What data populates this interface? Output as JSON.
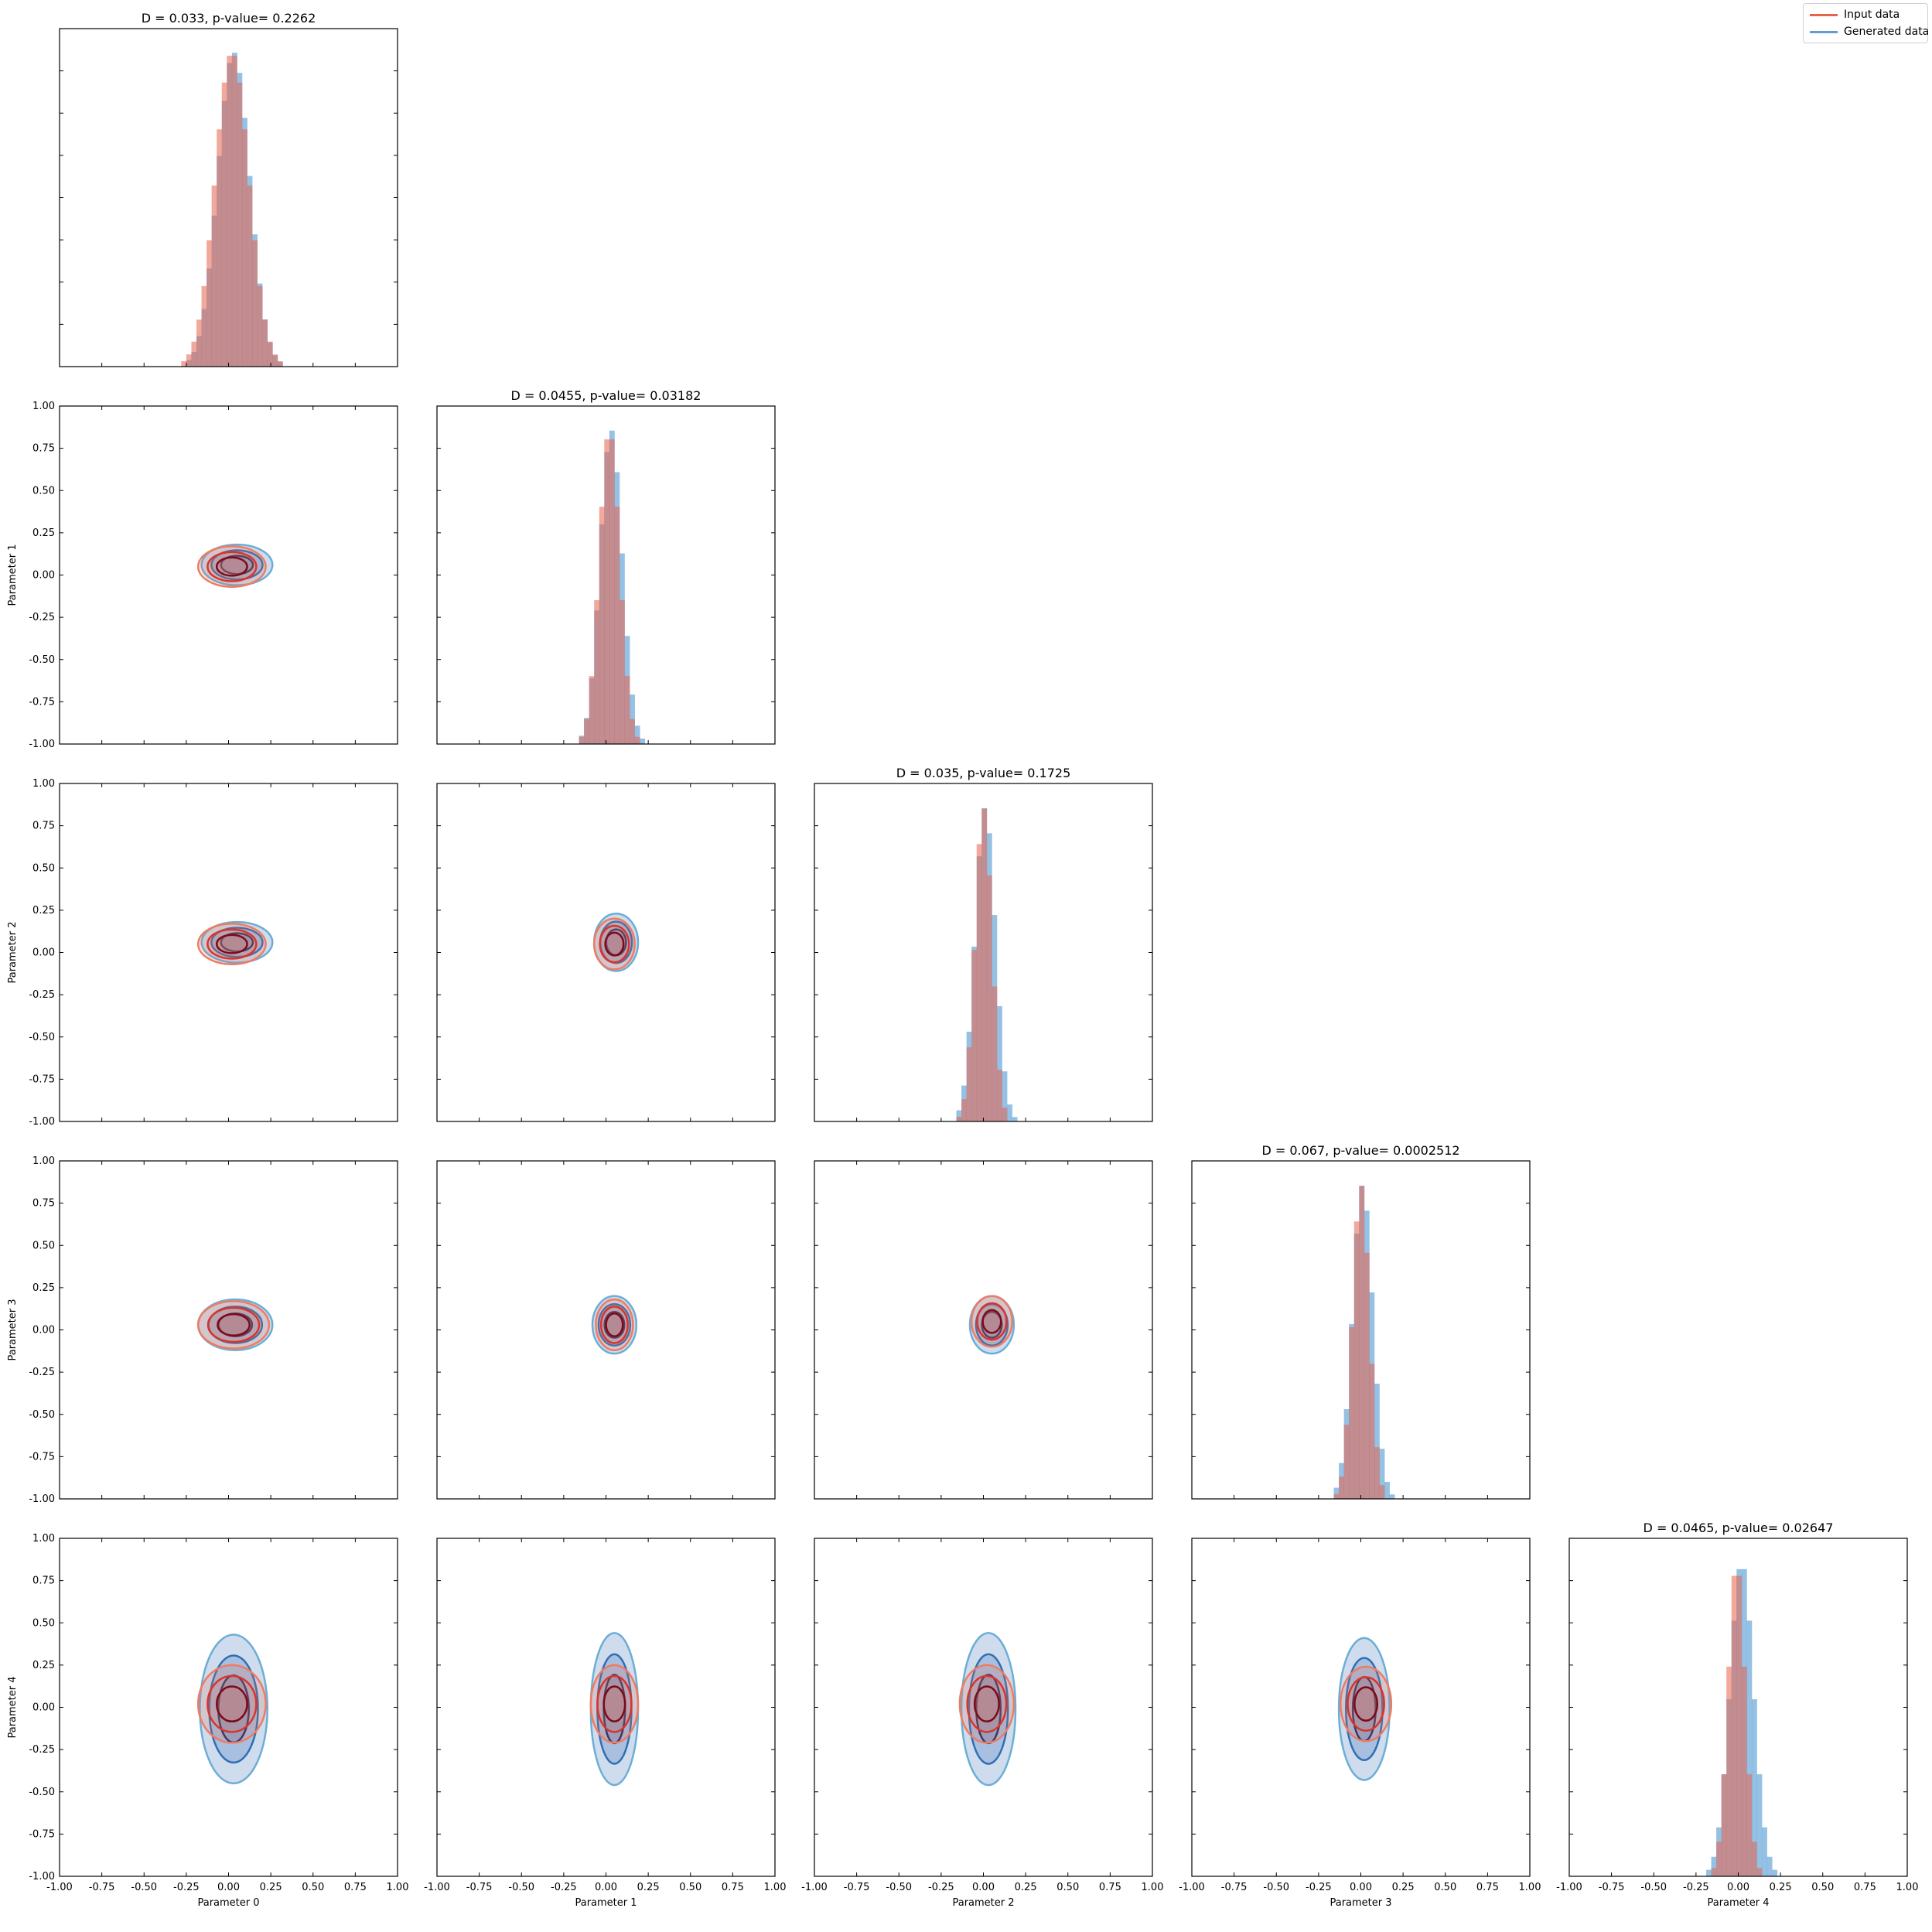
{
  "legend": {
    "placement": "top-right",
    "items": [
      {
        "label": "Input data",
        "color": "#e8634c"
      },
      {
        "label": "Generated data",
        "color": "#5b9fd6"
      }
    ]
  },
  "colors": {
    "input": "#e8634c",
    "generated": "#5b9fd6",
    "overlap": "#7b7aa0"
  },
  "chart_data": {
    "type": "corner-plot",
    "parameters": [
      "Parameter 0",
      "Parameter 1",
      "Parameter 2",
      "Parameter 3",
      "Parameter 4"
    ],
    "xlim": [
      -1.0,
      1.0
    ],
    "ylim": [
      -1.0,
      1.0
    ],
    "tick_labels": [
      "-1.00",
      "-0.75",
      "-0.50",
      "-0.25",
      "0.00",
      "0.25",
      "0.50",
      "0.75",
      "1.00"
    ],
    "tick_values": [
      -1.0,
      -0.75,
      -0.5,
      -0.25,
      0.0,
      0.25,
      0.5,
      0.75,
      1.0
    ],
    "series": [
      {
        "name": "Input data"
      },
      {
        "name": "Generated data"
      }
    ],
    "diagonal": [
      {
        "title": "D = 0.033, p-value= 0.2262",
        "D": 0.033,
        "p_value": 0.2262,
        "input": {
          "center": 0.02,
          "spread": 0.1
        },
        "generated": {
          "center": 0.03,
          "spread": 0.095
        }
      },
      {
        "title": "D = 0.0455, p-value= 0.03182",
        "D": 0.0455,
        "p_value": 0.03182,
        "input": {
          "center": 0.02,
          "spread": 0.06
        },
        "generated": {
          "center": 0.03,
          "spread": 0.065
        }
      },
      {
        "title": "D = 0.035, p-value= 0.1725",
        "D": 0.035,
        "p_value": 0.1725,
        "input": {
          "center": 0.0,
          "spread": 0.05
        },
        "generated": {
          "center": 0.01,
          "spread": 0.06
        }
      },
      {
        "title": "D = 0.067, p-value= 0.0002512",
        "D": 0.067,
        "p_value": 0.0002512,
        "input": {
          "center": 0.0,
          "spread": 0.05
        },
        "generated": {
          "center": 0.01,
          "spread": 0.06
        }
      },
      {
        "title": "D = 0.0465, p-value= 0.02647",
        "D": 0.0465,
        "p_value": 0.02647,
        "input": {
          "center": -0.01,
          "spread": 0.05
        },
        "generated": {
          "center": 0.02,
          "spread": 0.07
        }
      }
    ],
    "off_diagonal": [
      {
        "row": 1,
        "col": 0,
        "input": {
          "cx": 0.02,
          "cy": 0.05,
          "rx": 0.2,
          "ry": 0.12
        },
        "generated": {
          "cx": 0.05,
          "cy": 0.06,
          "rx": 0.21,
          "ry": 0.12
        }
      },
      {
        "row": 2,
        "col": 0,
        "input": {
          "cx": 0.02,
          "cy": 0.05,
          "rx": 0.2,
          "ry": 0.12
        },
        "generated": {
          "cx": 0.05,
          "cy": 0.06,
          "rx": 0.21,
          "ry": 0.12
        }
      },
      {
        "row": 2,
        "col": 1,
        "input": {
          "cx": 0.05,
          "cy": 0.05,
          "rx": 0.12,
          "ry": 0.15
        },
        "generated": {
          "cx": 0.06,
          "cy": 0.06,
          "rx": 0.13,
          "ry": 0.17
        }
      },
      {
        "row": 3,
        "col": 0,
        "input": {
          "cx": 0.03,
          "cy": 0.03,
          "rx": 0.21,
          "ry": 0.14
        },
        "generated": {
          "cx": 0.04,
          "cy": 0.03,
          "rx": 0.22,
          "ry": 0.15
        }
      },
      {
        "row": 3,
        "col": 1,
        "input": {
          "cx": 0.05,
          "cy": 0.03,
          "rx": 0.11,
          "ry": 0.15
        },
        "generated": {
          "cx": 0.05,
          "cy": 0.03,
          "rx": 0.13,
          "ry": 0.17
        }
      },
      {
        "row": 3,
        "col": 2,
        "input": {
          "cx": 0.05,
          "cy": 0.05,
          "rx": 0.12,
          "ry": 0.15
        },
        "generated": {
          "cx": 0.05,
          "cy": 0.03,
          "rx": 0.13,
          "ry": 0.17
        }
      },
      {
        "row": 4,
        "col": 0,
        "input": {
          "cx": 0.02,
          "cy": 0.02,
          "rx": 0.2,
          "ry": 0.23
        },
        "generated": {
          "cx": 0.03,
          "cy": -0.01,
          "rx": 0.2,
          "ry": 0.44
        }
      },
      {
        "row": 4,
        "col": 1,
        "input": {
          "cx": 0.05,
          "cy": 0.02,
          "rx": 0.14,
          "ry": 0.23
        },
        "generated": {
          "cx": 0.05,
          "cy": -0.01,
          "rx": 0.14,
          "ry": 0.45
        }
      },
      {
        "row": 4,
        "col": 2,
        "input": {
          "cx": 0.02,
          "cy": 0.02,
          "rx": 0.16,
          "ry": 0.23
        },
        "generated": {
          "cx": 0.03,
          "cy": -0.01,
          "rx": 0.16,
          "ry": 0.45
        }
      },
      {
        "row": 4,
        "col": 3,
        "input": {
          "cx": 0.03,
          "cy": 0.02,
          "rx": 0.15,
          "ry": 0.22
        },
        "generated": {
          "cx": 0.02,
          "cy": -0.01,
          "rx": 0.15,
          "ry": 0.42
        }
      }
    ]
  }
}
